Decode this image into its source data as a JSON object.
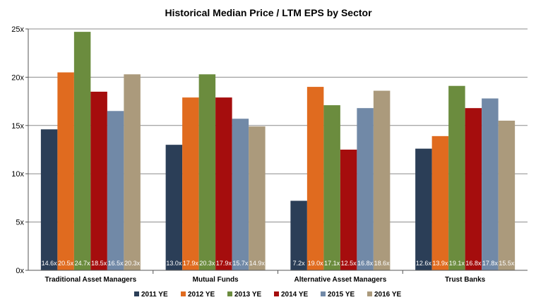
{
  "chart_data": {
    "type": "bar",
    "title": "Historical Median Price / LTM EPS by Sector",
    "xlabel": "",
    "ylabel": "",
    "ylim": [
      0,
      25
    ],
    "yticks": [
      0,
      5,
      10,
      15,
      20,
      25
    ],
    "ytick_labels": [
      "0x",
      "5x",
      "10x",
      "15x",
      "20x",
      "25x"
    ],
    "grid": true,
    "legend_position": "bottom",
    "categories": [
      "Traditional Asset Managers",
      "Mutual Funds",
      "Alternative Asset Managers",
      "Trust Banks"
    ],
    "series": [
      {
        "name": "2011 YE",
        "color": "#2b3e57",
        "values": [
          14.6,
          13.0,
          7.2,
          12.6
        ],
        "labels": [
          "14.6x",
          "13.0x",
          "7.2x",
          "12.6x"
        ]
      },
      {
        "name": "2012 YE",
        "color": "#e06b1f",
        "values": [
          20.5,
          17.9,
          19.0,
          13.9
        ],
        "labels": [
          "20.5x",
          "17.9x",
          "19.0x",
          "13.9x"
        ]
      },
      {
        "name": "2013 YE",
        "color": "#6b8c3e",
        "values": [
          24.7,
          20.3,
          17.1,
          19.1
        ],
        "labels": [
          "24.7x",
          "20.3x",
          "17.1x",
          "19.1x"
        ]
      },
      {
        "name": "2014 YE",
        "color": "#a50d0d",
        "values": [
          18.5,
          17.9,
          12.5,
          16.8
        ],
        "labels": [
          "18.5x",
          "17.9x",
          "12.5x",
          "16.8x"
        ]
      },
      {
        "name": "2015 YE",
        "color": "#7189a7",
        "values": [
          16.5,
          15.7,
          16.8,
          17.8
        ],
        "labels": [
          "16.5x",
          "15.7x",
          "16.8x",
          "17.8x"
        ]
      },
      {
        "name": "2016 YE",
        "color": "#ab9a7c",
        "values": [
          20.3,
          14.9,
          18.6,
          15.5
        ],
        "labels": [
          "20.3x",
          "14.9x",
          "18.6x",
          "15.5x"
        ]
      }
    ]
  }
}
